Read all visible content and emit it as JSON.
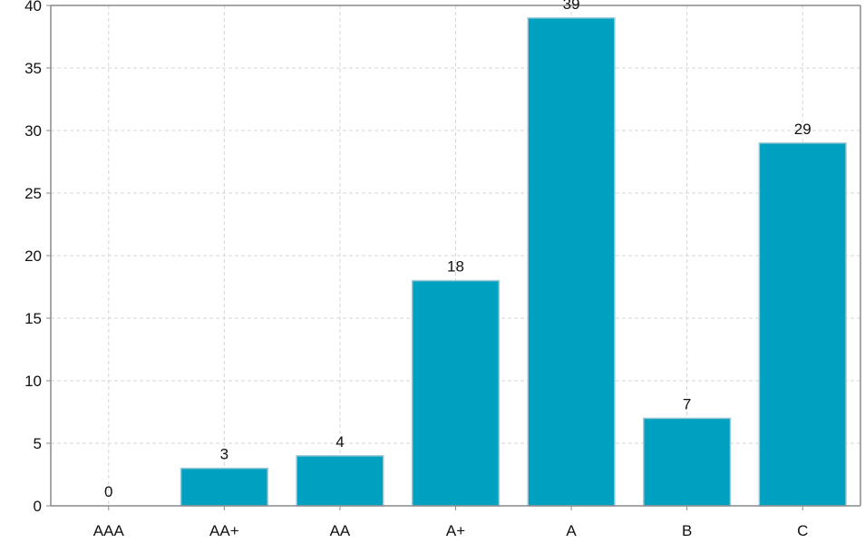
{
  "chart_data": {
    "type": "bar",
    "categories": [
      "AAA",
      "AA+",
      "AA",
      "A+",
      "A",
      "B",
      "C"
    ],
    "values": [
      0,
      3,
      4,
      18,
      39,
      7,
      29
    ],
    "title": "",
    "xlabel": "",
    "ylabel": "",
    "ylim": [
      0,
      40
    ],
    "y_ticks": [
      0,
      5,
      10,
      15,
      20,
      25,
      30,
      35,
      40
    ],
    "grid": true,
    "data_labels": true,
    "bar_color": "#00a0c0",
    "bar_edge_color": "#9ec9d4"
  }
}
